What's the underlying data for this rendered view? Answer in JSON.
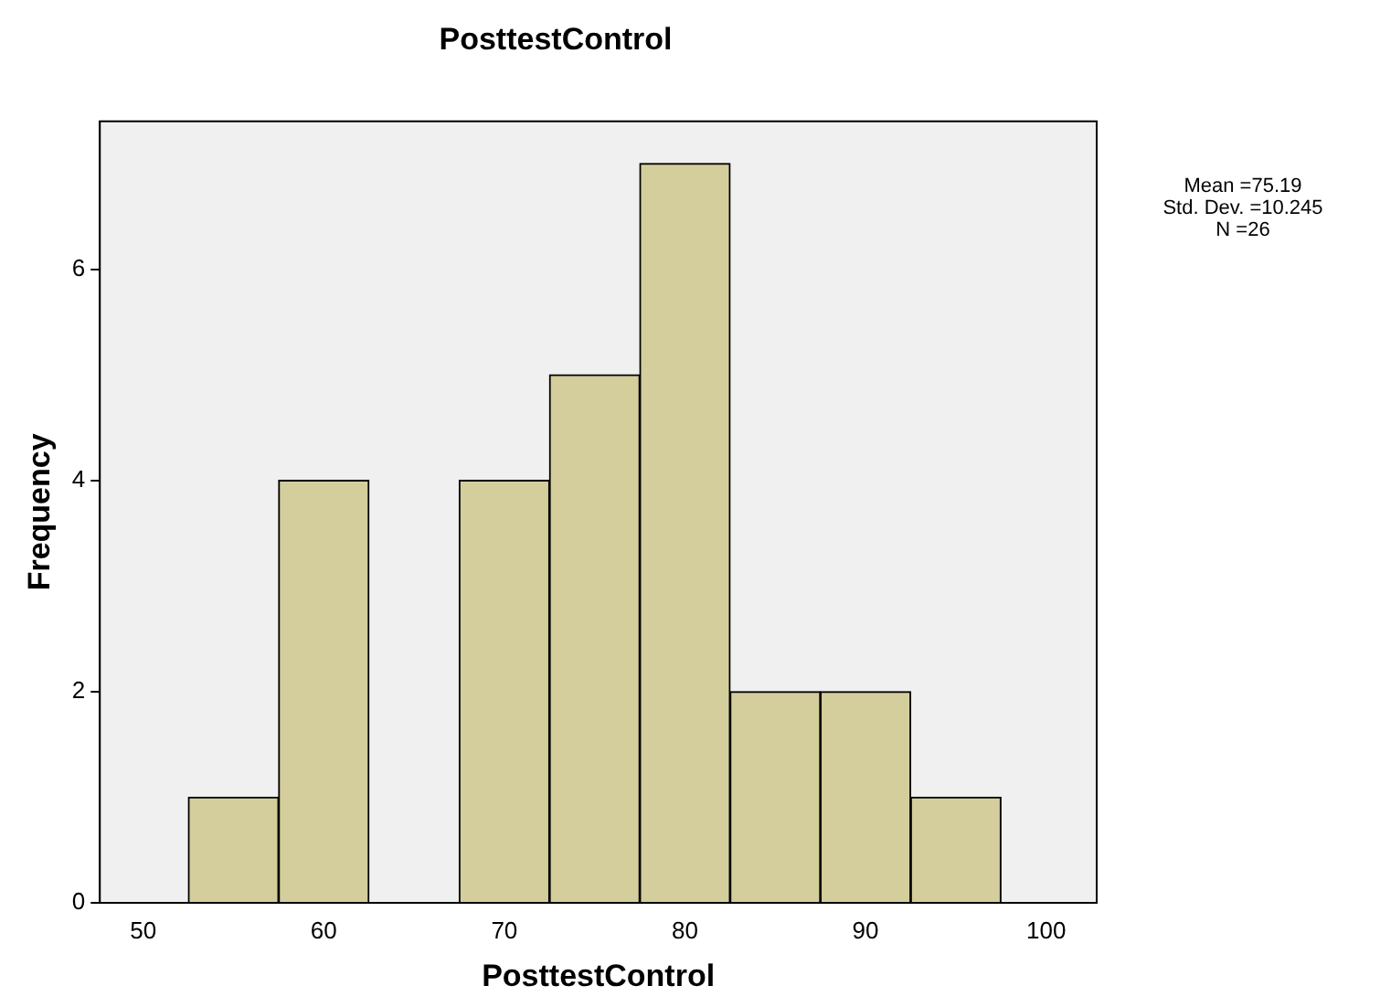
{
  "chart_data": {
    "type": "histogram",
    "title": "PosttestControl",
    "xlabel": "PosttestControl",
    "ylabel": "Frequency",
    "bins": [
      52.5,
      57.5,
      62.5,
      67.5,
      72.5,
      77.5,
      82.5,
      87.5,
      92.5,
      97.5
    ],
    "values": [
      1,
      4,
      0,
      4,
      5,
      7,
      2,
      2,
      1
    ],
    "color": "#d3ce9b",
    "xlim": [
      47.6,
      102.8
    ],
    "xticks": [
      50,
      60,
      70,
      80,
      90,
      100
    ],
    "ylim": [
      0,
      7.4
    ],
    "yticks": [
      0,
      2,
      4,
      6
    ],
    "grid": false,
    "legend": false,
    "annotations": [
      "Mean =75.19",
      "Std. Dev. =10.245",
      "N =26"
    ]
  }
}
